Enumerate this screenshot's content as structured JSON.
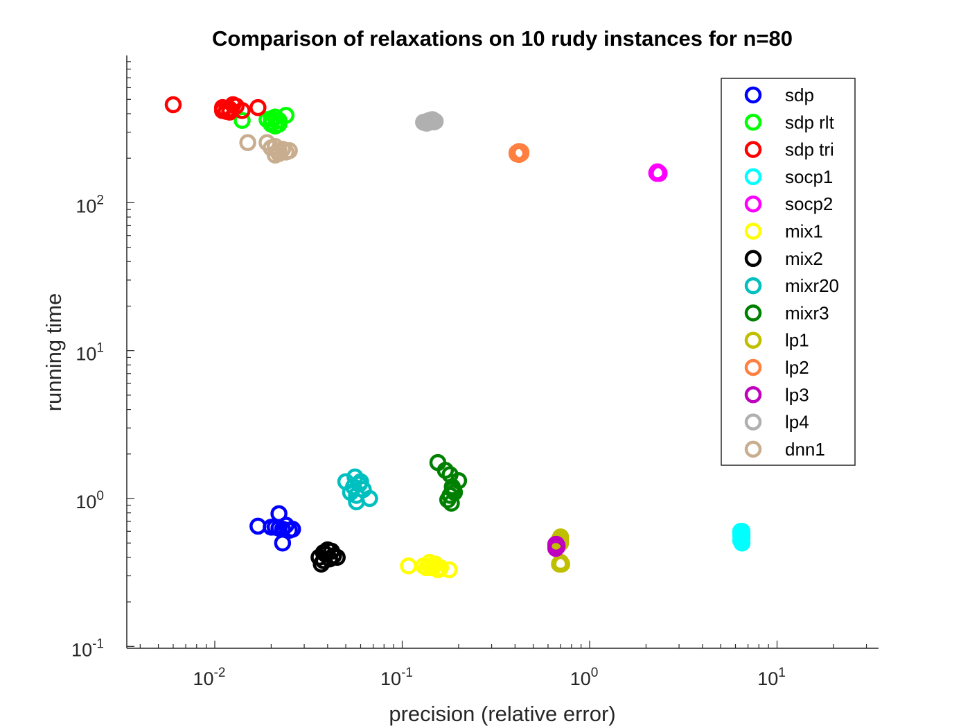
{
  "chart_data": {
    "type": "scatter",
    "title": "Comparison of relaxations on 10 rudy instances for n=80",
    "xlabel": "precision (relative error)",
    "ylabel": "running time",
    "xscale": "log",
    "yscale": "log",
    "xlim": [
      0.004,
      35
    ],
    "ylim": [
      0.1,
      900
    ],
    "x_ticks": [
      {
        "base": "10",
        "exp": "-2",
        "value": 0.01
      },
      {
        "base": "10",
        "exp": "-1",
        "value": 0.1
      },
      {
        "base": "10",
        "exp": "0",
        "value": 1
      },
      {
        "base": "10",
        "exp": "1",
        "value": 10
      }
    ],
    "y_ticks": [
      {
        "base": "10",
        "exp": "-1",
        "value": 0.1
      },
      {
        "base": "10",
        "exp": "0",
        "value": 1
      },
      {
        "base": "10",
        "exp": "1",
        "value": 10
      },
      {
        "base": "10",
        "exp": "2",
        "value": 100
      }
    ],
    "legend_position": "top-right",
    "marker": "open-circle",
    "series": [
      {
        "name": "sdp",
        "color": "#0000ff",
        "points": [
          [
            0.017,
            0.65
          ],
          [
            0.022,
            0.79
          ],
          [
            0.021,
            0.64
          ],
          [
            0.023,
            0.62
          ],
          [
            0.024,
            0.66
          ],
          [
            0.025,
            0.61
          ],
          [
            0.026,
            0.62
          ],
          [
            0.023,
            0.5
          ],
          [
            0.022,
            0.63
          ],
          [
            0.02,
            0.64
          ]
        ]
      },
      {
        "name": "sdp rlt",
        "color": "#00ff00",
        "points": [
          [
            0.014,
            360
          ],
          [
            0.02,
            370
          ],
          [
            0.021,
            330
          ],
          [
            0.022,
            340
          ],
          [
            0.024,
            390
          ],
          [
            0.02,
            350
          ],
          [
            0.021,
            380
          ],
          [
            0.022,
            360
          ],
          [
            0.02,
            340
          ],
          [
            0.019,
            365
          ]
        ]
      },
      {
        "name": "sdp tri",
        "color": "#ff0000",
        "points": [
          [
            0.006,
            460
          ],
          [
            0.011,
            420
          ],
          [
            0.011,
            440
          ],
          [
            0.012,
            410
          ],
          [
            0.013,
            450
          ],
          [
            0.012,
            430
          ],
          [
            0.014,
            420
          ],
          [
            0.017,
            440
          ],
          [
            0.0125,
            460
          ],
          [
            0.0115,
            415
          ]
        ]
      },
      {
        "name": "socp1",
        "color": "#00ffff",
        "points": [
          [
            6.4,
            0.6
          ],
          [
            6.5,
            0.55
          ],
          [
            6.5,
            0.5
          ],
          [
            6.4,
            0.58
          ],
          [
            6.5,
            0.57
          ],
          [
            6.4,
            0.52
          ],
          [
            6.5,
            0.6
          ],
          [
            6.4,
            0.56
          ],
          [
            6.5,
            0.54
          ],
          [
            6.4,
            0.59
          ]
        ]
      },
      {
        "name": "socp2",
        "color": "#ff00ff",
        "points": [
          [
            2.3,
            160
          ],
          [
            2.35,
            158
          ],
          [
            2.3,
            162
          ],
          [
            2.32,
            160
          ],
          [
            2.28,
            159
          ],
          [
            2.31,
            161
          ],
          [
            2.33,
            160
          ],
          [
            2.29,
            158
          ],
          [
            2.3,
            161
          ],
          [
            2.32,
            159
          ]
        ]
      },
      {
        "name": "mix1",
        "color": "#ffff00",
        "points": [
          [
            0.108,
            0.35
          ],
          [
            0.13,
            0.35
          ],
          [
            0.14,
            0.37
          ],
          [
            0.145,
            0.34
          ],
          [
            0.15,
            0.36
          ],
          [
            0.155,
            0.33
          ],
          [
            0.16,
            0.34
          ],
          [
            0.178,
            0.33
          ],
          [
            0.135,
            0.34
          ],
          [
            0.14,
            0.35
          ]
        ]
      },
      {
        "name": "mix2",
        "color": "#000000",
        "points": [
          [
            0.036,
            0.4
          ],
          [
            0.038,
            0.43
          ],
          [
            0.04,
            0.45
          ],
          [
            0.042,
            0.44
          ],
          [
            0.045,
            0.4
          ],
          [
            0.037,
            0.36
          ],
          [
            0.038,
            0.38
          ],
          [
            0.039,
            0.42
          ],
          [
            0.041,
            0.39
          ],
          [
            0.043,
            0.41
          ]
        ]
      },
      {
        "name": "mixr20",
        "color": "#00bfbf",
        "points": [
          [
            0.05,
            1.3
          ],
          [
            0.056,
            1.4
          ],
          [
            0.06,
            1.3
          ],
          [
            0.055,
            1.2
          ],
          [
            0.053,
            1.1
          ],
          [
            0.057,
            1.05
          ],
          [
            0.059,
            1.25
          ],
          [
            0.067,
            1.0
          ],
          [
            0.057,
            0.95
          ],
          [
            0.062,
            1.15
          ]
        ]
      },
      {
        "name": "mixr3",
        "color": "#008000",
        "points": [
          [
            0.155,
            1.75
          ],
          [
            0.17,
            1.55
          ],
          [
            0.18,
            1.45
          ],
          [
            0.2,
            1.32
          ],
          [
            0.185,
            1.2
          ],
          [
            0.18,
            1.05
          ],
          [
            0.175,
            0.98
          ],
          [
            0.183,
            0.93
          ],
          [
            0.19,
            1.1
          ],
          [
            0.186,
            1.15
          ]
        ]
      },
      {
        "name": "lp1",
        "color": "#bfbf00",
        "points": [
          [
            0.7,
            0.55
          ],
          [
            0.69,
            0.36
          ],
          [
            0.7,
            0.37
          ],
          [
            0.69,
            0.5
          ],
          [
            0.7,
            0.52
          ],
          [
            0.71,
            0.36
          ],
          [
            0.7,
            0.54
          ],
          [
            0.69,
            0.53
          ],
          [
            0.7,
            0.37
          ],
          [
            0.7,
            0.5
          ]
        ]
      },
      {
        "name": "lp2",
        "color": "#ff7f40",
        "points": [
          [
            0.42,
            215
          ],
          [
            0.43,
            220
          ],
          [
            0.41,
            218
          ],
          [
            0.42,
            212
          ],
          [
            0.43,
            216
          ],
          [
            0.41,
            214
          ],
          [
            0.42,
            222
          ],
          [
            0.425,
            217
          ],
          [
            0.415,
            219
          ],
          [
            0.42,
            216
          ]
        ]
      },
      {
        "name": "lp3",
        "color": "#bf00bf",
        "points": [
          [
            0.66,
            0.48
          ],
          [
            0.67,
            0.47
          ],
          [
            0.665,
            0.49
          ],
          [
            0.66,
            0.46
          ],
          [
            0.67,
            0.48
          ],
          [
            0.665,
            0.47
          ],
          [
            0.66,
            0.49
          ],
          [
            0.67,
            0.48
          ],
          [
            0.665,
            0.47
          ],
          [
            0.66,
            0.48
          ]
        ]
      },
      {
        "name": "lp4",
        "color": "#b0b0b0",
        "points": [
          [
            0.13,
            350
          ],
          [
            0.14,
            360
          ],
          [
            0.15,
            355
          ],
          [
            0.135,
            345
          ],
          [
            0.145,
            365
          ],
          [
            0.14,
            350
          ],
          [
            0.138,
            358
          ],
          [
            0.148,
            352
          ],
          [
            0.132,
            348
          ],
          [
            0.142,
            362
          ]
        ]
      },
      {
        "name": "dnn1",
        "color": "#c8ad8f",
        "points": [
          [
            0.015,
            255
          ],
          [
            0.019,
            255
          ],
          [
            0.021,
            240
          ],
          [
            0.022,
            225
          ],
          [
            0.023,
            230
          ],
          [
            0.025,
            225
          ],
          [
            0.021,
            210
          ],
          [
            0.022,
            215
          ],
          [
            0.02,
            235
          ],
          [
            0.024,
            220
          ]
        ]
      }
    ]
  }
}
